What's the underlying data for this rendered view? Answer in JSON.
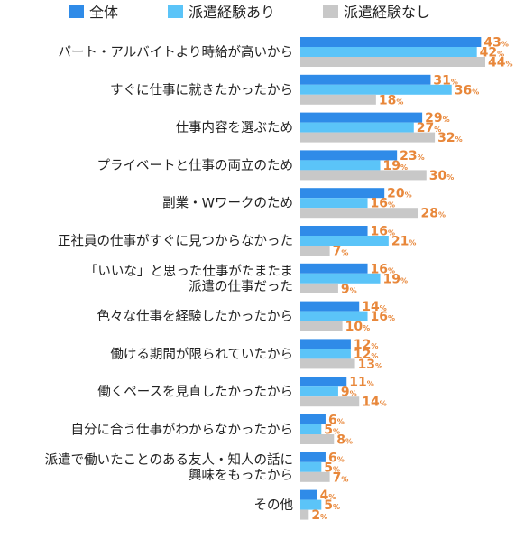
{
  "chart_data": {
    "type": "bar",
    "orientation": "horizontal",
    "unit": "%",
    "legend_position": "top",
    "grid": false,
    "xlim": [
      0,
      44
    ],
    "series": [
      {
        "name": "全体",
        "color": "#2f8be8"
      },
      {
        "name": "派遣経験あり",
        "color": "#5bc4f8"
      },
      {
        "name": "派遣経験なし",
        "color": "#c8c8c8"
      }
    ],
    "categories": [
      {
        "label": [
          "パート・アルバイトより時給が高いから"
        ],
        "values": [
          43,
          42,
          44
        ]
      },
      {
        "label": [
          "すぐに仕事に就きたかったから"
        ],
        "values": [
          31,
          36,
          18
        ]
      },
      {
        "label": [
          "仕事内容を選ぶため"
        ],
        "values": [
          29,
          27,
          32
        ]
      },
      {
        "label": [
          "プライベートと仕事の両立のため"
        ],
        "values": [
          23,
          19,
          30
        ]
      },
      {
        "label": [
          "副業・Wワークのため"
        ],
        "values": [
          20,
          16,
          28
        ]
      },
      {
        "label": [
          "正社員の仕事がすぐに見つからなかった"
        ],
        "values": [
          16,
          21,
          7
        ]
      },
      {
        "label": [
          "「いいな」と思った仕事がたまたま",
          "派遣の仕事だった"
        ],
        "values": [
          16,
          19,
          9
        ]
      },
      {
        "label": [
          "色々な仕事を経験したかったから"
        ],
        "values": [
          14,
          16,
          10
        ]
      },
      {
        "label": [
          "働ける期間が限られていたから"
        ],
        "values": [
          12,
          12,
          13
        ]
      },
      {
        "label": [
          "働くペースを見直したかったから"
        ],
        "values": [
          11,
          9,
          14
        ]
      },
      {
        "label": [
          "自分に合う仕事がわからなかったから"
        ],
        "values": [
          6,
          5,
          8
        ]
      },
      {
        "label": [
          "派遣で働いたことのある友人・知人の話に",
          "興味をもったから"
        ],
        "values": [
          6,
          5,
          7
        ]
      },
      {
        "label": [
          "その他"
        ],
        "values": [
          4,
          5,
          2
        ]
      }
    ]
  }
}
